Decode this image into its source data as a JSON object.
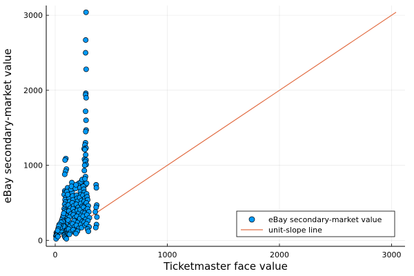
{
  "chart_data": {
    "type": "scatter",
    "xlabel": "Ticketmaster face value",
    "ylabel": "eBay secondary-market value",
    "xlim": [
      -80,
      3120
    ],
    "ylim": [
      -80,
      3130
    ],
    "x_ticks": [
      0,
      1000,
      2000,
      3000
    ],
    "y_ticks": [
      0,
      1000,
      2000,
      3000
    ],
    "x_tick_labels": [
      "0",
      "1000",
      "2000",
      "3000"
    ],
    "y_tick_labels": [
      "0",
      "1000",
      "2000",
      "3000"
    ],
    "grid": true,
    "legend_position": "bottom-right",
    "series": [
      {
        "name": "eBay secondary-market value",
        "kind": "scatter",
        "color": "#009AFA",
        "points": [
          [
            275,
            3040
          ],
          [
            272,
            2670
          ],
          [
            271,
            2500
          ],
          [
            276,
            2280
          ],
          [
            273,
            1960
          ],
          [
            271,
            1940
          ],
          [
            276,
            1900
          ],
          [
            271,
            1720
          ],
          [
            275,
            1600
          ],
          [
            276,
            1470
          ],
          [
            272,
            1450
          ],
          [
            270,
            1300
          ],
          [
            265,
            1270
          ],
          [
            275,
            1230
          ],
          [
            258,
            1220
          ],
          [
            265,
            1210
          ],
          [
            272,
            1140
          ],
          [
            261,
            1080
          ],
          [
            275,
            1070
          ],
          [
            268,
            1050
          ],
          [
            276,
            1010
          ],
          [
            263,
            1000
          ],
          [
            95,
            1090
          ],
          [
            88,
            1070
          ],
          [
            100,
            950
          ],
          [
            93,
            920
          ],
          [
            85,
            880
          ],
          [
            148,
            770
          ],
          [
            210,
            760
          ],
          [
            260,
            930
          ],
          [
            270,
            850
          ],
          [
            255,
            780
          ],
          [
            270,
            740
          ],
          [
            280,
            760
          ],
          [
            365,
            740
          ],
          [
            367,
            700
          ],
          [
            370,
            470
          ],
          [
            365,
            440
          ],
          [
            368,
            210
          ],
          [
            362,
            170
          ],
          [
            358,
            380
          ],
          [
            372,
            310
          ],
          [
            85,
            660
          ],
          [
            90,
            640
          ],
          [
            80,
            610
          ],
          [
            95,
            570
          ],
          [
            88,
            540
          ],
          [
            92,
            510
          ],
          [
            84,
            480
          ],
          [
            96,
            450
          ],
          [
            80,
            420
          ],
          [
            87,
            400
          ],
          [
            93,
            380
          ],
          [
            82,
            350
          ],
          [
            98,
            330
          ],
          [
            78,
            310
          ],
          [
            89,
            290
          ],
          [
            94,
            260
          ],
          [
            83,
            240
          ],
          [
            97,
            220
          ],
          [
            79,
            200
          ],
          [
            88,
            180
          ],
          [
            93,
            160
          ],
          [
            84,
            140
          ],
          [
            98,
            120
          ],
          [
            80,
            100
          ],
          [
            88,
            90
          ],
          [
            93,
            80
          ],
          [
            82,
            70
          ],
          [
            97,
            60
          ],
          [
            85,
            50
          ],
          [
            90,
            35
          ],
          [
            100,
            20
          ],
          [
            10,
            100
          ],
          [
            14,
            80
          ],
          [
            6,
            60
          ],
          [
            12,
            40
          ],
          [
            8,
            20
          ],
          [
            16,
            110
          ],
          [
            20,
            90
          ],
          [
            18,
            70
          ],
          [
            24,
            50
          ],
          [
            30,
            120
          ],
          [
            28,
            160
          ],
          [
            35,
            140
          ],
          [
            40,
            180
          ],
          [
            45,
            110
          ],
          [
            50,
            150
          ],
          [
            55,
            130
          ],
          [
            60,
            200
          ],
          [
            65,
            170
          ],
          [
            70,
            230
          ],
          [
            75,
            190
          ],
          [
            42,
            210
          ],
          [
            58,
            260
          ],
          [
            66,
            300
          ],
          [
            120,
            600
          ],
          [
            125,
            560
          ],
          [
            130,
            520
          ],
          [
            118,
            470
          ],
          [
            135,
            430
          ],
          [
            122,
            390
          ],
          [
            140,
            350
          ],
          [
            128,
            310
          ],
          [
            115,
            270
          ],
          [
            145,
            230
          ],
          [
            133,
            190
          ],
          [
            120,
            150
          ],
          [
            138,
            110
          ],
          [
            127,
            80
          ],
          [
            150,
            640
          ],
          [
            155,
            590
          ],
          [
            160,
            540
          ],
          [
            152,
            500
          ],
          [
            165,
            460
          ],
          [
            158,
            420
          ],
          [
            170,
            380
          ],
          [
            162,
            340
          ],
          [
            175,
            300
          ],
          [
            168,
            260
          ],
          [
            155,
            220
          ],
          [
            172,
            180
          ],
          [
            160,
            140
          ],
          [
            178,
            100
          ],
          [
            190,
            600
          ],
          [
            195,
            560
          ],
          [
            200,
            520
          ],
          [
            188,
            480
          ],
          [
            205,
            440
          ],
          [
            198,
            400
          ],
          [
            210,
            360
          ],
          [
            193,
            320
          ],
          [
            215,
            280
          ],
          [
            202,
            240
          ],
          [
            189,
            200
          ],
          [
            212,
            160
          ],
          [
            198,
            120
          ],
          [
            185,
            90
          ],
          [
            220,
            700
          ],
          [
            225,
            650
          ],
          [
            230,
            610
          ],
          [
            218,
            570
          ],
          [
            235,
            530
          ],
          [
            228,
            490
          ],
          [
            240,
            450
          ],
          [
            223,
            410
          ],
          [
            245,
            370
          ],
          [
            232,
            330
          ],
          [
            219,
            290
          ],
          [
            242,
            250
          ],
          [
            228,
            210
          ],
          [
            236,
            170
          ],
          [
            250,
            720
          ],
          [
            255,
            680
          ],
          [
            260,
            640
          ],
          [
            248,
            600
          ],
          [
            265,
            560
          ],
          [
            258,
            520
          ],
          [
            270,
            480
          ],
          [
            253,
            440
          ],
          [
            275,
            400
          ],
          [
            262,
            360
          ],
          [
            249,
            320
          ],
          [
            272,
            280
          ],
          [
            258,
            240
          ],
          [
            266,
            200
          ],
          [
            280,
            620
          ],
          [
            285,
            580
          ],
          [
            290,
            540
          ],
          [
            278,
            500
          ],
          [
            295,
            460
          ],
          [
            288,
            420
          ],
          [
            300,
            380
          ],
          [
            283,
            340
          ],
          [
            305,
            300
          ],
          [
            292,
            260
          ],
          [
            279,
            220
          ],
          [
            302,
            180
          ],
          [
            288,
            150
          ],
          [
            296,
            120
          ],
          [
            110,
            700
          ],
          [
            105,
            650
          ],
          [
            112,
            610
          ],
          [
            140,
            680
          ],
          [
            145,
            720
          ],
          [
            180,
            690
          ],
          [
            185,
            740
          ],
          [
            230,
            780
          ],
          [
            240,
            810
          ],
          [
            265,
            820
          ],
          [
            62,
            280
          ],
          [
            68,
            250
          ],
          [
            72,
            330
          ],
          [
            76,
            360
          ],
          [
            52,
            240
          ],
          [
            48,
            200
          ],
          [
            44,
            170
          ],
          [
            36,
            210
          ],
          [
            32,
            190
          ],
          [
            26,
            150
          ],
          [
            22,
            130
          ]
        ]
      },
      {
        "name": "unit-slope line",
        "kind": "line",
        "color": "#E26F46",
        "points": [
          [
            0,
            0
          ],
          [
            3040,
            3040
          ]
        ]
      }
    ]
  }
}
